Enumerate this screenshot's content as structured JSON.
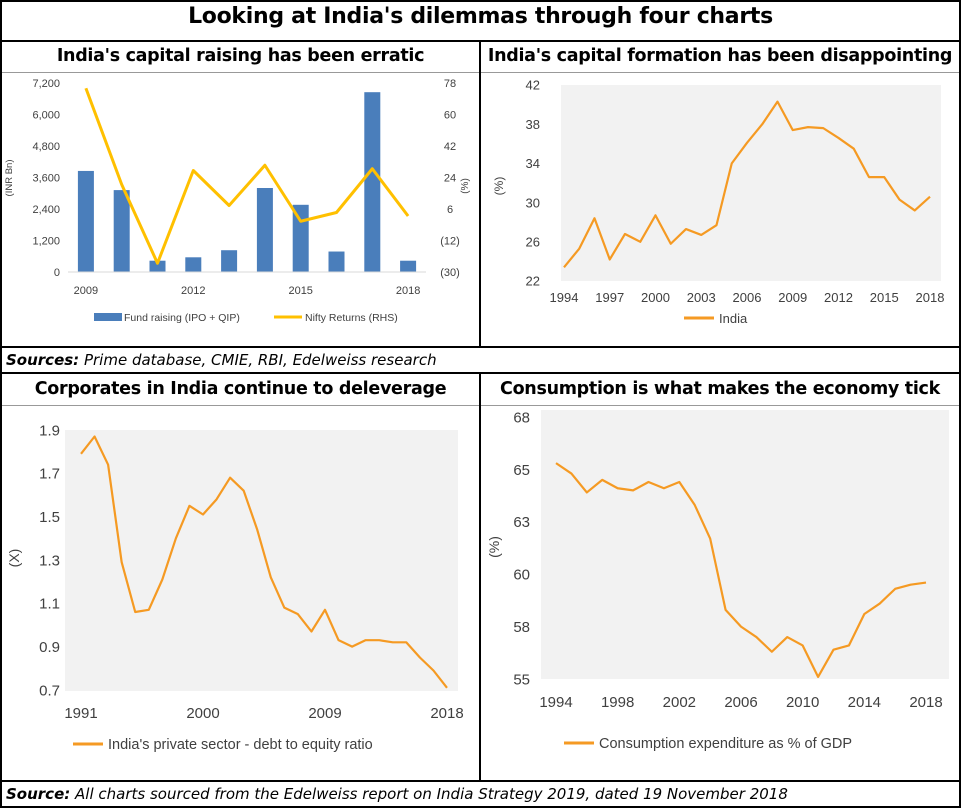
{
  "page": {
    "title": "Looking at India's dilemmas through four charts",
    "sources_top_label": "Sources:",
    "sources_top_text": "Prime database, CMIE, RBI, Edelweiss research",
    "sources_bottom_label": "Source:",
    "sources_bottom_text": "All charts sourced from the Edelweiss report on India Strategy 2019, dated  19 November 2018"
  },
  "chart_data": [
    {
      "title": "India's capital raising has been erratic",
      "type": "bar",
      "ylabel": "(INR Bn)",
      "ylabel_right": "(%)",
      "y_ticks": [
        "7,200",
        "6,000",
        "4,800",
        "3,600",
        "2,400",
        "1,200",
        "0"
      ],
      "y_right_ticks": [
        "78",
        "60",
        "42",
        "24",
        "6",
        "(12)",
        "(30)"
      ],
      "x_ticks": [
        "2009",
        "2012",
        "2015",
        "2018"
      ],
      "ylim": [
        0,
        7200
      ],
      "ylim_right": [
        -30,
        78
      ],
      "x": [
        2009,
        2010,
        2011,
        2012,
        2013,
        2014,
        2015,
        2016,
        2017,
        2018
      ],
      "series": [
        {
          "name": "Fund raising (IPO + QIP)",
          "type": "bar",
          "color": "#4A7EBB",
          "values": [
            3850,
            3120,
            430,
            560,
            830,
            3200,
            2560,
            780,
            6850,
            430
          ]
        },
        {
          "name": "Nifty Returns (RHS)",
          "type": "line",
          "color": "#FFC000",
          "values": [
            75,
            20,
            -25,
            28,
            8,
            31,
            -1,
            4,
            29,
            2
          ]
        }
      ],
      "legend_position": "bottom"
    },
    {
      "title": "India's capital formation has been disappointing",
      "type": "line",
      "ylabel": "(%)",
      "y_ticks": [
        "42",
        "38",
        "34",
        "30",
        "26",
        "22"
      ],
      "x_ticks": [
        "1994",
        "1997",
        "2000",
        "2003",
        "2006",
        "2009",
        "2012",
        "2015",
        "2018"
      ],
      "ylim": [
        22,
        42
      ],
      "x": [
        1994,
        1995,
        1996,
        1997,
        1998,
        1999,
        2000,
        2001,
        2002,
        2003,
        2004,
        2005,
        2006,
        2007,
        2008,
        2009,
        2010,
        2011,
        2012,
        2013,
        2014,
        2015,
        2016,
        2017,
        2018
      ],
      "series": [
        {
          "name": "India",
          "color": "#F59A23",
          "values": [
            23.4,
            25.3,
            28.4,
            24.2,
            26.8,
            26.0,
            28.7,
            25.8,
            27.3,
            26.7,
            27.7,
            34.0,
            36.1,
            38.0,
            40.3,
            37.4,
            37.7,
            37.6,
            36.6,
            35.5,
            32.6,
            32.6,
            30.3,
            29.2,
            30.6
          ]
        }
      ],
      "legend_position": "bottom"
    },
    {
      "title": "Corporates in India continue to deleverage",
      "type": "line",
      "ylabel": "(X)",
      "y_ticks": [
        "1.9",
        "1.7",
        "1.5",
        "1.3",
        "1.1",
        "0.9",
        "0.7"
      ],
      "x_ticks": [
        "1991",
        "2000",
        "2009",
        "2018"
      ],
      "ylim": [
        0.7,
        1.9
      ],
      "x": [
        1991,
        1992,
        1993,
        1994,
        1995,
        1996,
        1997,
        1998,
        1999,
        2000,
        2001,
        2002,
        2003,
        2004,
        2005,
        2006,
        2007,
        2008,
        2009,
        2010,
        2011,
        2012,
        2013,
        2014,
        2015,
        2016,
        2017,
        2018
      ],
      "series": [
        {
          "name": "India's private sector - debt to equity ratio",
          "color": "#F59A23",
          "values": [
            1.79,
            1.87,
            1.74,
            1.29,
            1.06,
            1.07,
            1.21,
            1.4,
            1.55,
            1.51,
            1.58,
            1.68,
            1.62,
            1.44,
            1.22,
            1.08,
            1.05,
            0.97,
            1.07,
            0.93,
            0.9,
            0.93,
            0.93,
            0.92,
            0.92,
            0.85,
            0.79,
            0.71
          ]
        }
      ],
      "legend_position": "bottom"
    },
    {
      "title": "Consumption is what makes the economy tick",
      "type": "line",
      "ylabel": "(%)",
      "y_ticks": [
        "68",
        "65",
        "63",
        "60",
        "58",
        "55"
      ],
      "x_ticks": [
        "1994",
        "1998",
        "2002",
        "2006",
        "2010",
        "2014",
        "2018"
      ],
      "ylim": [
        55,
        67.5
      ],
      "x": [
        1994,
        1995,
        1996,
        1997,
        1998,
        1999,
        2000,
        2001,
        2002,
        2003,
        2004,
        2005,
        2006,
        2007,
        2008,
        2009,
        2010,
        2011,
        2012,
        2013,
        2014,
        2015,
        2016,
        2017,
        2018
      ],
      "series": [
        {
          "name": "Consumption expenditure as % of GDP",
          "color": "#F59A23",
          "values": [
            65.3,
            64.8,
            63.9,
            64.5,
            64.1,
            64.0,
            64.4,
            64.1,
            64.4,
            63.3,
            61.7,
            58.3,
            57.5,
            57.0,
            56.3,
            57.0,
            56.6,
            55.1,
            56.4,
            56.6,
            58.1,
            58.6,
            59.3,
            59.5,
            59.6
          ]
        }
      ],
      "legend_position": "bottom"
    }
  ]
}
